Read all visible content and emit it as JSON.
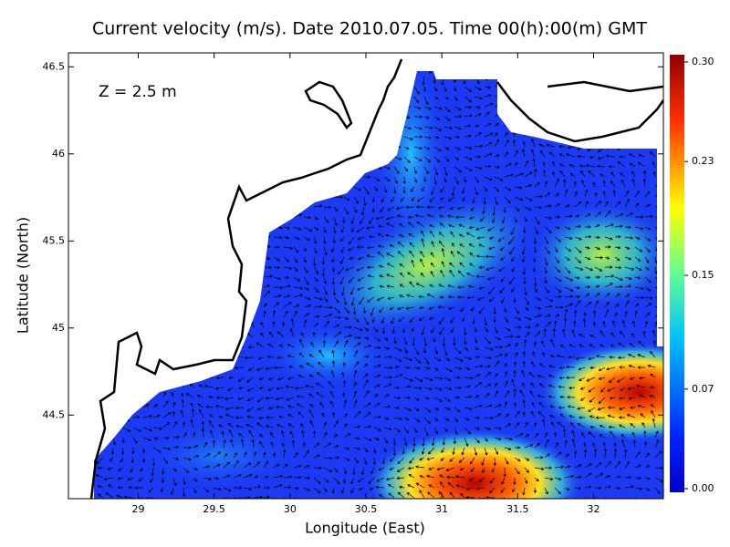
{
  "chart_data": {
    "type": "map",
    "title": "Current velocity (m/s). Date 2010.07.05. Time 00(h):00(m) GMT",
    "annotation": "Z = 2.5 m",
    "x_label": "Longitude (East)",
    "y_label": "Latitude (North)",
    "xlim": [
      28.54,
      32.46
    ],
    "ylim": [
      44.02,
      46.58
    ],
    "xticks": [
      29,
      29.5,
      30,
      30.5,
      31,
      31.5,
      32
    ],
    "yticks": [
      44.5,
      45,
      45.5,
      46,
      46.5
    ],
    "colorbar": {
      "lim": [
        0,
        0.3
      ],
      "ticks": [
        {
          "value": 0,
          "label": "0.00"
        },
        {
          "value": 0.07,
          "label": "0.07"
        },
        {
          "value": 0.15,
          "label": "0.15"
        },
        {
          "value": 0.23,
          "label": "0.23"
        },
        {
          "value": 0.3,
          "label": "0.30"
        }
      ]
    }
  }
}
